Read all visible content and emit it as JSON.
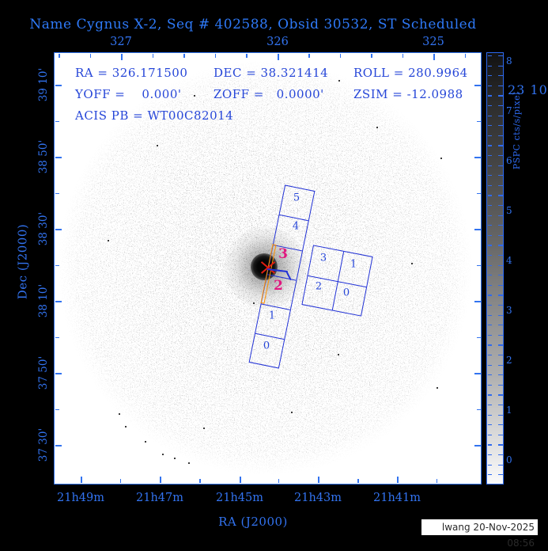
{
  "title": "Name Cygnus X-2, Seq # 402588, Obsid 30532, ST Scheduled",
  "header_overlay": {
    "ra": "RA = 326.171500",
    "dec": "DEC = 38.321414",
    "roll": "ROLL = 280.9964",
    "yoff": "YOFF =    0.000'",
    "zoff": "ZOFF =   0.0000'",
    "zsim": "ZSIM = -12.0988",
    "acis_pb": "ACIS PB = WT00C82014"
  },
  "axes": {
    "x_top": {
      "tick_labels": [
        "327",
        "326",
        "325"
      ]
    },
    "x_bottom": {
      "label": "RA (J2000)",
      "tick_labels": [
        "21h49m",
        "21h47m",
        "21h45m",
        "21h43m",
        "21h41m"
      ]
    },
    "y_left": {
      "label": "Dec (J2000)",
      "tick_labels": [
        "39 10'",
        "38 50'",
        "38 30'",
        "38 10'",
        "37 50'",
        "37 30'"
      ]
    }
  },
  "colorbar": {
    "label": "PSPC cts/s/pixel",
    "tick_labels": [
      "8",
      "7",
      "6",
      "5",
      "4",
      "3",
      "2",
      "1",
      "0"
    ],
    "edge_note": "23 10"
  },
  "overlay_fov": {
    "s_chips": [
      "5",
      "4",
      "3",
      "2",
      "1",
      "0"
    ],
    "s_active": [
      "3",
      "2"
    ],
    "i_chips": [
      "3",
      "1",
      "2",
      "0"
    ],
    "colors": {
      "chip_outline": "#2131d6",
      "chip_label": "#2646d8",
      "active_label": "#e0187f",
      "subarray": "#ff9100",
      "marker": "#df1d12",
      "axis_blue": "#3273f0"
    }
  },
  "footer_credit": "lwang 20-Nov-2025 08:56",
  "chart_data": {
    "type": "heatmap",
    "title": "Name Cygnus X-2, Seq # 402588, Obsid 30532, ST Scheduled",
    "xlabel": "RA (J2000)",
    "ylabel": "Dec (J2000)",
    "x_top_ticks_deg": [
      327,
      326,
      325
    ],
    "x_bottom_ticks": [
      "21h49m",
      "21h47m",
      "21h45m",
      "21h43m",
      "21h41m"
    ],
    "y_ticks": [
      "39 10'",
      "38 50'",
      "38 30'",
      "38 10'",
      "37 50'",
      "37 30'"
    ],
    "colorbar": {
      "label": "PSPC cts/s/pixel",
      "ticks": [
        8,
        7,
        6,
        5,
        4,
        3,
        2,
        1,
        0
      ]
    },
    "target": {
      "name": "Cygnus X-2",
      "seq": "402588",
      "obsid": "30532",
      "status": "ST Scheduled",
      "ra_deg": 326.1715,
      "dec_deg": 38.321414,
      "roll_deg": 280.9964,
      "yoff_arcmin": 0.0,
      "zoff_arcmin": 0.0,
      "zsim": -12.0988,
      "acis_pb": "WT00C82014"
    },
    "overlays": {
      "acis_s_chips_top_to_bottom": [
        "5",
        "4",
        "3",
        "2",
        "1",
        "0"
      ],
      "acis_s_highlighted": [
        "3",
        "2"
      ],
      "acis_i_chips": [
        "3",
        "1",
        "2",
        "0"
      ],
      "subarray_shown": true,
      "aimpoint_marker": "red X on source"
    }
  }
}
